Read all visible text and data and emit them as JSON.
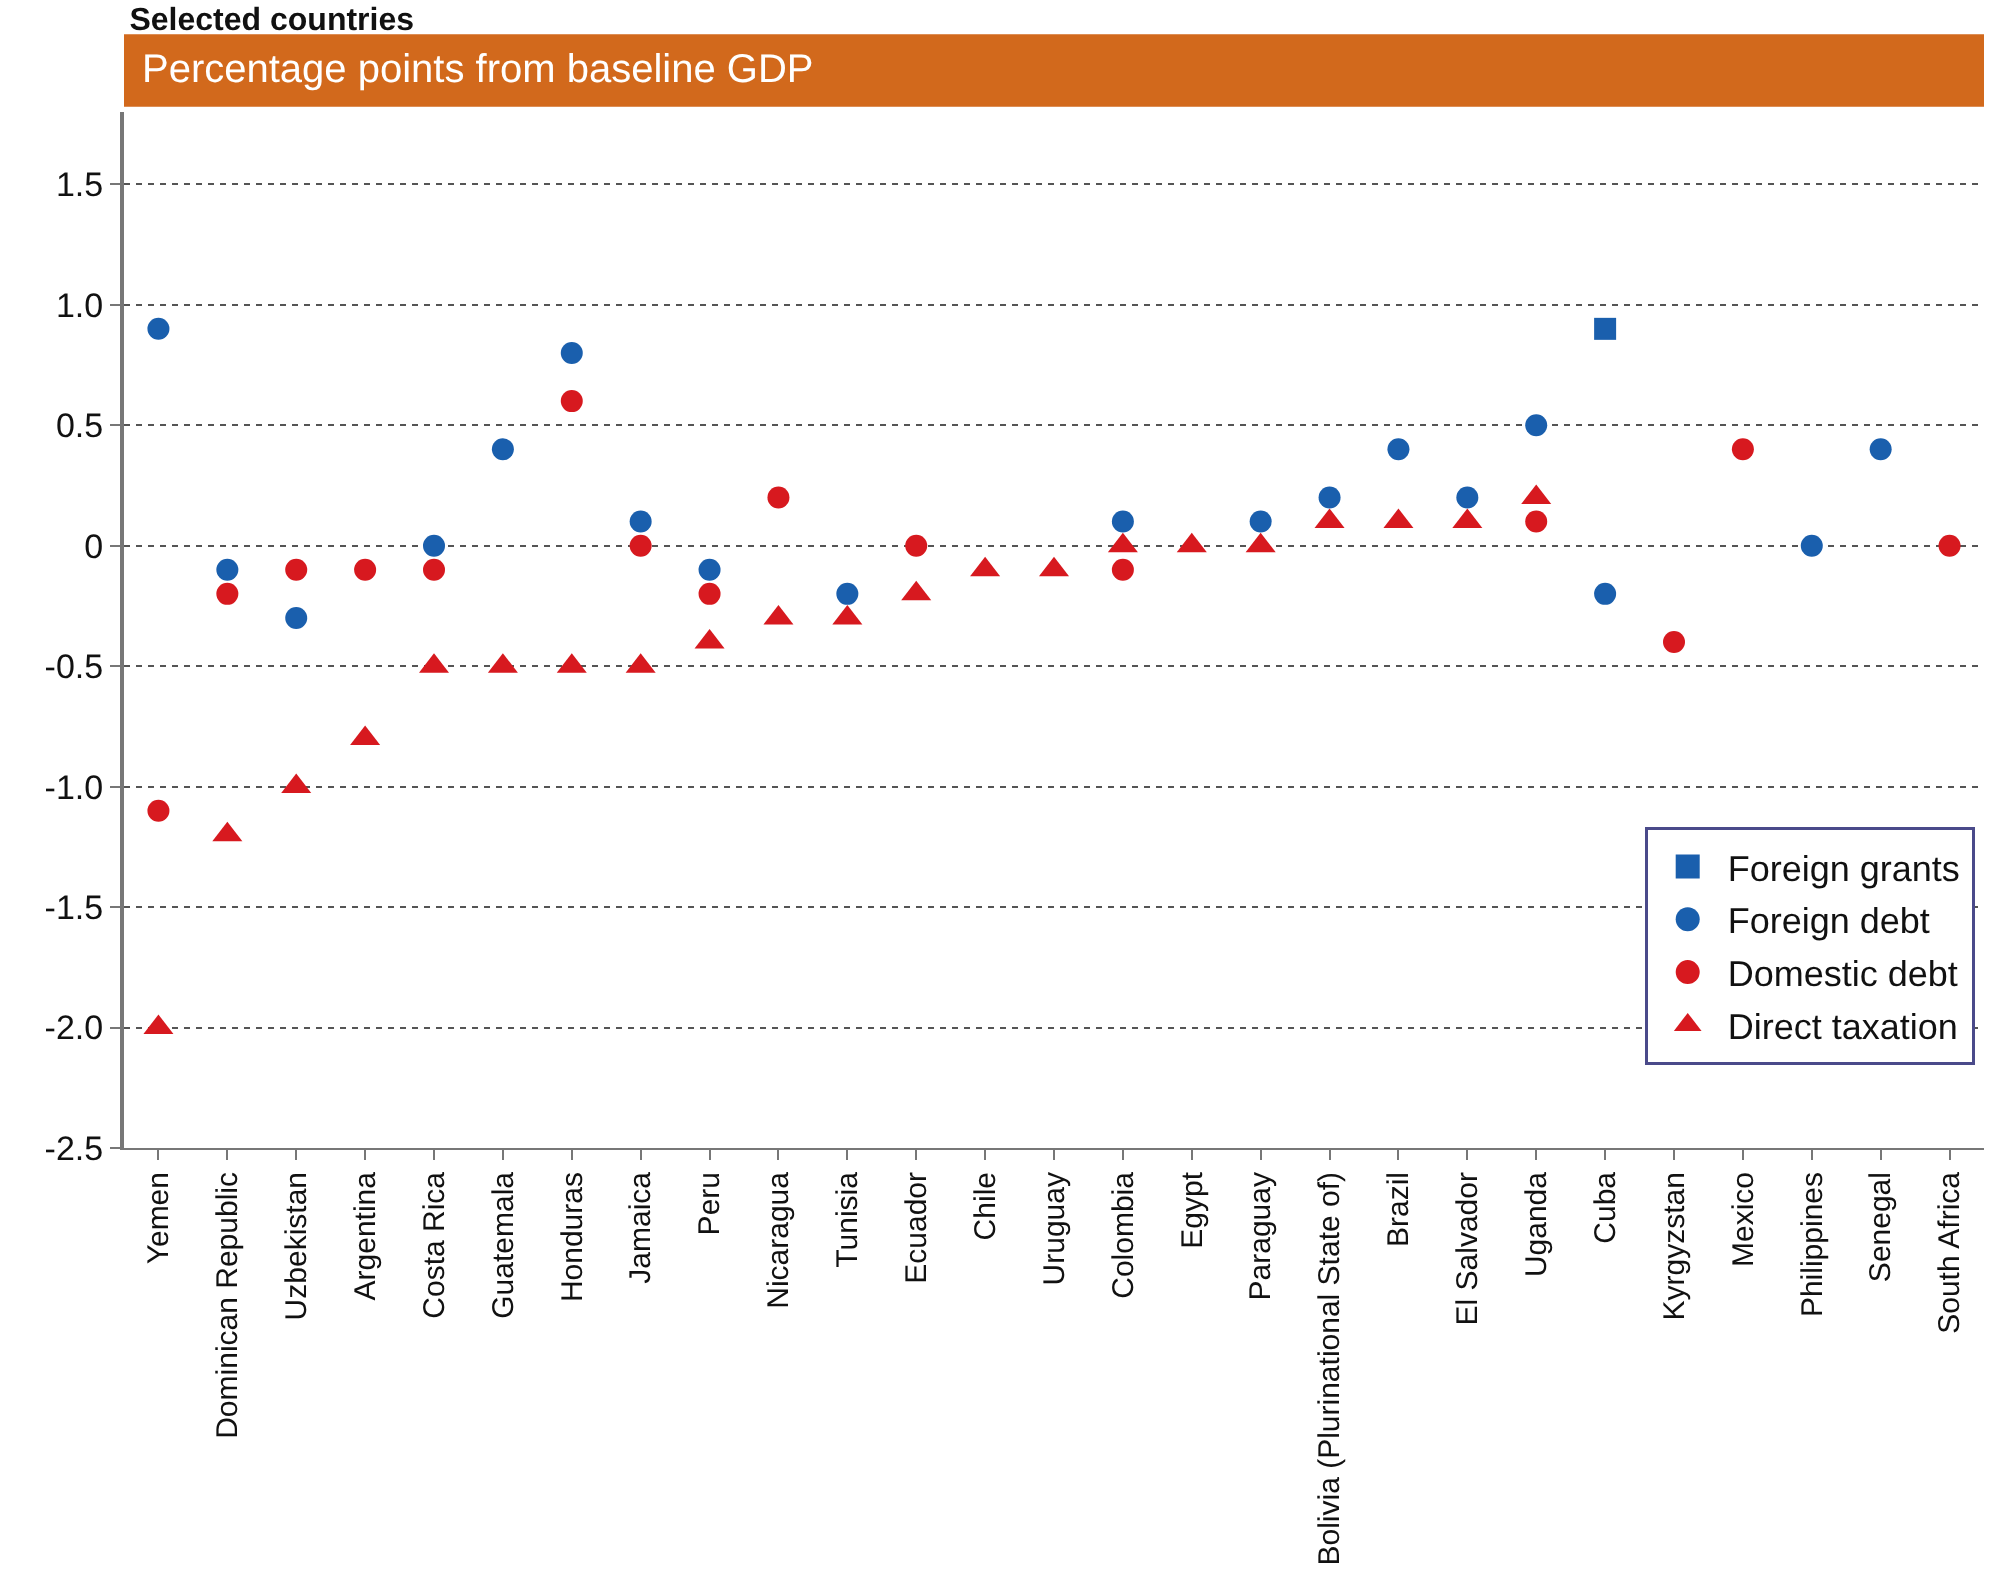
{
  "chart_data": {
    "type": "scatter",
    "title": "Selected countries",
    "subtitle": "Percentage points from baseline GDP",
    "categories": [
      "Yemen",
      "Dominican Republic",
      "Uzbekistan",
      "Argentina",
      "Costa Rica",
      "Guatemala",
      "Honduras",
      "Jamaica",
      "Peru",
      "Nicaragua",
      "Tunisia",
      "Ecuador",
      "Chile",
      "Uruguay",
      "Colombia",
      "Egypt",
      "Paraguay",
      "Bolivia (Plurinational State of)",
      "Brazil",
      "El Salvador",
      "Uganda",
      "Cuba",
      "Kyrgyzstan",
      "Mexico",
      "Philippines",
      "Senegal",
      "South Africa"
    ],
    "series": [
      {
        "name": "Direct taxation",
        "color": "#d7191f",
        "marker": "triangle",
        "values": [
          -2.0,
          -1.2,
          -1.0,
          -0.8,
          -0.5,
          -0.5,
          -0.5,
          -0.5,
          -0.4,
          -0.3,
          -0.3,
          -0.2,
          -0.1,
          -0.1,
          0.0,
          0.0,
          0.0,
          0.1,
          0.1,
          0.1,
          0.2,
          null,
          null,
          null,
          null,
          null,
          null
        ]
      },
      {
        "name": "Domestic debt",
        "color": "#d7191f",
        "marker": "circle",
        "values": [
          -1.1,
          -0.2,
          -0.1,
          -0.1,
          -0.1,
          null,
          0.6,
          0.0,
          -0.2,
          0.2,
          null,
          0.0,
          null,
          null,
          -0.1,
          null,
          null,
          null,
          null,
          null,
          0.1,
          null,
          -0.4,
          0.4,
          null,
          null,
          0.0
        ]
      },
      {
        "name": "Foreign debt",
        "color": "#1a5fad",
        "marker": "circle",
        "values": [
          0.9,
          -0.1,
          -0.3,
          null,
          0.0,
          0.4,
          0.8,
          0.1,
          -0.1,
          null,
          -0.2,
          null,
          null,
          null,
          0.1,
          null,
          0.1,
          0.2,
          0.4,
          0.2,
          0.5,
          -0.2,
          null,
          null,
          0.0,
          0.4,
          null
        ]
      },
      {
        "name": "Foreign grants",
        "color": "#1a5fad",
        "marker": "square",
        "values": [
          null,
          null,
          null,
          null,
          null,
          null,
          null,
          null,
          null,
          null,
          null,
          null,
          null,
          null,
          null,
          null,
          null,
          null,
          null,
          null,
          null,
          0.9,
          null,
          null,
          null,
          null,
          null
        ]
      }
    ],
    "ylim": [
      -2.5,
      1.8
    ],
    "yticks": [
      {
        "value": -2.5,
        "label": "-2.5"
      },
      {
        "value": -2.0,
        "label": "-2.0"
      },
      {
        "value": -1.5,
        "label": "-1.5"
      },
      {
        "value": -1.0,
        "label": "-1.0"
      },
      {
        "value": -0.5,
        "label": "-0.5"
      },
      0,
      {
        "value": 0.5,
        "label": "0.5"
      },
      {
        "value": 1.0,
        "label": "1.0"
      },
      {
        "value": 1.5,
        "label": "1.5"
      }
    ],
    "grid": "y",
    "legend": "bottom right"
  }
}
